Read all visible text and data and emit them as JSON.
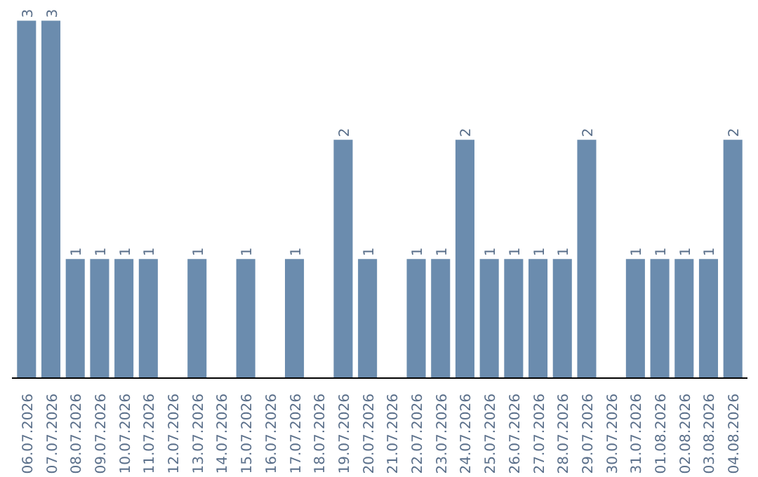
{
  "chart_data": {
    "type": "bar",
    "categories": [
      "06.07.2026",
      "07.07.2026",
      "08.07.2026",
      "09.07.2026",
      "10.07.2026",
      "11.07.2026",
      "12.07.2026",
      "13.07.2026",
      "14.07.2026",
      "15.07.2026",
      "16.07.2026",
      "17.07.2026",
      "18.07.2026",
      "19.07.2026",
      "20.07.2026",
      "21.07.2026",
      "22.07.2026",
      "23.07.2026",
      "24.07.2026",
      "25.07.2026",
      "26.07.2026",
      "27.07.2026",
      "28.07.2026",
      "29.07.2026",
      "30.07.2026",
      "31.07.2026",
      "01.08.2026",
      "02.08.2026",
      "03.08.2026",
      "04.08.2026"
    ],
    "values": [
      3,
      3,
      1,
      1,
      1,
      1,
      0,
      1,
      0,
      1,
      0,
      1,
      0,
      2,
      1,
      0,
      1,
      1,
      2,
      1,
      1,
      1,
      1,
      2,
      0,
      1,
      1,
      1,
      1,
      2
    ],
    "value_labels": [
      "3",
      "3",
      "1",
      "1",
      "1",
      "1",
      null,
      "1",
      null,
      "1",
      null,
      "1",
      null,
      "2",
      "1",
      null,
      "1",
      "1",
      "2",
      "1",
      "1",
      "1",
      "1",
      "2",
      null,
      "1",
      "1",
      "1",
      "1",
      "2"
    ],
    "color": "#6b8cae",
    "grid": false
  }
}
